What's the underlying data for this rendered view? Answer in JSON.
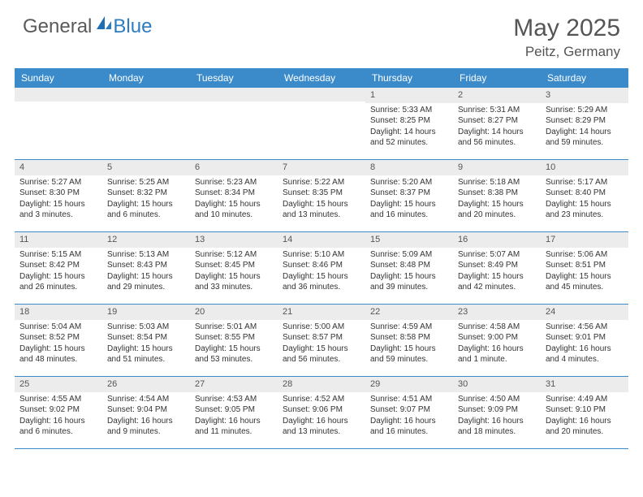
{
  "brand": {
    "part1": "General",
    "part2": "Blue"
  },
  "title": "May 2025",
  "location": "Peitz, Germany",
  "colors": {
    "header_bg": "#3b8bca",
    "header_text": "#ffffff",
    "daynum_bg": "#ececec",
    "text": "#333333",
    "rule": "#3b8bca",
    "title_text": "#555555",
    "logo_gray": "#5a5a5a",
    "logo_blue": "#2d7bc0"
  },
  "day_names": [
    "Sunday",
    "Monday",
    "Tuesday",
    "Wednesday",
    "Thursday",
    "Friday",
    "Saturday"
  ],
  "weeks": [
    [
      {
        "n": "",
        "sun": "",
        "set": "",
        "day": ""
      },
      {
        "n": "",
        "sun": "",
        "set": "",
        "day": ""
      },
      {
        "n": "",
        "sun": "",
        "set": "",
        "day": ""
      },
      {
        "n": "",
        "sun": "",
        "set": "",
        "day": ""
      },
      {
        "n": "1",
        "sun": "Sunrise: 5:33 AM",
        "set": "Sunset: 8:25 PM",
        "day": "Daylight: 14 hours and 52 minutes."
      },
      {
        "n": "2",
        "sun": "Sunrise: 5:31 AM",
        "set": "Sunset: 8:27 PM",
        "day": "Daylight: 14 hours and 56 minutes."
      },
      {
        "n": "3",
        "sun": "Sunrise: 5:29 AM",
        "set": "Sunset: 8:29 PM",
        "day": "Daylight: 14 hours and 59 minutes."
      }
    ],
    [
      {
        "n": "4",
        "sun": "Sunrise: 5:27 AM",
        "set": "Sunset: 8:30 PM",
        "day": "Daylight: 15 hours and 3 minutes."
      },
      {
        "n": "5",
        "sun": "Sunrise: 5:25 AM",
        "set": "Sunset: 8:32 PM",
        "day": "Daylight: 15 hours and 6 minutes."
      },
      {
        "n": "6",
        "sun": "Sunrise: 5:23 AM",
        "set": "Sunset: 8:34 PM",
        "day": "Daylight: 15 hours and 10 minutes."
      },
      {
        "n": "7",
        "sun": "Sunrise: 5:22 AM",
        "set": "Sunset: 8:35 PM",
        "day": "Daylight: 15 hours and 13 minutes."
      },
      {
        "n": "8",
        "sun": "Sunrise: 5:20 AM",
        "set": "Sunset: 8:37 PM",
        "day": "Daylight: 15 hours and 16 minutes."
      },
      {
        "n": "9",
        "sun": "Sunrise: 5:18 AM",
        "set": "Sunset: 8:38 PM",
        "day": "Daylight: 15 hours and 20 minutes."
      },
      {
        "n": "10",
        "sun": "Sunrise: 5:17 AM",
        "set": "Sunset: 8:40 PM",
        "day": "Daylight: 15 hours and 23 minutes."
      }
    ],
    [
      {
        "n": "11",
        "sun": "Sunrise: 5:15 AM",
        "set": "Sunset: 8:42 PM",
        "day": "Daylight: 15 hours and 26 minutes."
      },
      {
        "n": "12",
        "sun": "Sunrise: 5:13 AM",
        "set": "Sunset: 8:43 PM",
        "day": "Daylight: 15 hours and 29 minutes."
      },
      {
        "n": "13",
        "sun": "Sunrise: 5:12 AM",
        "set": "Sunset: 8:45 PM",
        "day": "Daylight: 15 hours and 33 minutes."
      },
      {
        "n": "14",
        "sun": "Sunrise: 5:10 AM",
        "set": "Sunset: 8:46 PM",
        "day": "Daylight: 15 hours and 36 minutes."
      },
      {
        "n": "15",
        "sun": "Sunrise: 5:09 AM",
        "set": "Sunset: 8:48 PM",
        "day": "Daylight: 15 hours and 39 minutes."
      },
      {
        "n": "16",
        "sun": "Sunrise: 5:07 AM",
        "set": "Sunset: 8:49 PM",
        "day": "Daylight: 15 hours and 42 minutes."
      },
      {
        "n": "17",
        "sun": "Sunrise: 5:06 AM",
        "set": "Sunset: 8:51 PM",
        "day": "Daylight: 15 hours and 45 minutes."
      }
    ],
    [
      {
        "n": "18",
        "sun": "Sunrise: 5:04 AM",
        "set": "Sunset: 8:52 PM",
        "day": "Daylight: 15 hours and 48 minutes."
      },
      {
        "n": "19",
        "sun": "Sunrise: 5:03 AM",
        "set": "Sunset: 8:54 PM",
        "day": "Daylight: 15 hours and 51 minutes."
      },
      {
        "n": "20",
        "sun": "Sunrise: 5:01 AM",
        "set": "Sunset: 8:55 PM",
        "day": "Daylight: 15 hours and 53 minutes."
      },
      {
        "n": "21",
        "sun": "Sunrise: 5:00 AM",
        "set": "Sunset: 8:57 PM",
        "day": "Daylight: 15 hours and 56 minutes."
      },
      {
        "n": "22",
        "sun": "Sunrise: 4:59 AM",
        "set": "Sunset: 8:58 PM",
        "day": "Daylight: 15 hours and 59 minutes."
      },
      {
        "n": "23",
        "sun": "Sunrise: 4:58 AM",
        "set": "Sunset: 9:00 PM",
        "day": "Daylight: 16 hours and 1 minute."
      },
      {
        "n": "24",
        "sun": "Sunrise: 4:56 AM",
        "set": "Sunset: 9:01 PM",
        "day": "Daylight: 16 hours and 4 minutes."
      }
    ],
    [
      {
        "n": "25",
        "sun": "Sunrise: 4:55 AM",
        "set": "Sunset: 9:02 PM",
        "day": "Daylight: 16 hours and 6 minutes."
      },
      {
        "n": "26",
        "sun": "Sunrise: 4:54 AM",
        "set": "Sunset: 9:04 PM",
        "day": "Daylight: 16 hours and 9 minutes."
      },
      {
        "n": "27",
        "sun": "Sunrise: 4:53 AM",
        "set": "Sunset: 9:05 PM",
        "day": "Daylight: 16 hours and 11 minutes."
      },
      {
        "n": "28",
        "sun": "Sunrise: 4:52 AM",
        "set": "Sunset: 9:06 PM",
        "day": "Daylight: 16 hours and 13 minutes."
      },
      {
        "n": "29",
        "sun": "Sunrise: 4:51 AM",
        "set": "Sunset: 9:07 PM",
        "day": "Daylight: 16 hours and 16 minutes."
      },
      {
        "n": "30",
        "sun": "Sunrise: 4:50 AM",
        "set": "Sunset: 9:09 PM",
        "day": "Daylight: 16 hours and 18 minutes."
      },
      {
        "n": "31",
        "sun": "Sunrise: 4:49 AM",
        "set": "Sunset: 9:10 PM",
        "day": "Daylight: 16 hours and 20 minutes."
      }
    ]
  ]
}
